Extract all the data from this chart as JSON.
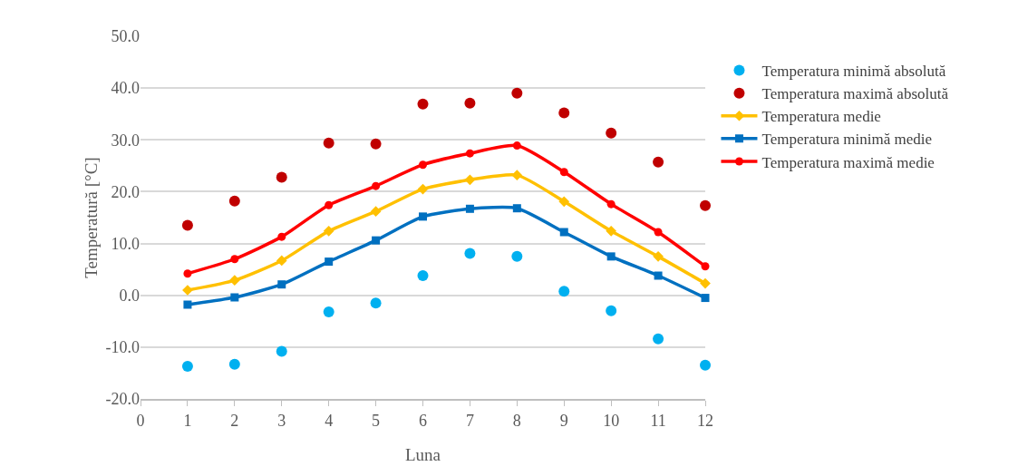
{
  "chart_data": {
    "type": "line",
    "xlabel": "Luna",
    "ylabel": "Temperatură [°C]",
    "x": [
      1,
      2,
      3,
      4,
      5,
      6,
      7,
      8,
      9,
      10,
      11,
      12
    ],
    "series": [
      {
        "name": "Temperatura minimă absolută",
        "type": "scatter",
        "marker": "circle",
        "color": "#00b0f0",
        "values": [
          -13.7,
          -13.3,
          -10.8,
          -3.2,
          -1.5,
          3.8,
          8.1,
          7.5,
          0.8,
          -3.0,
          -8.4,
          -13.5
        ]
      },
      {
        "name": "Temperatura maximă absolută",
        "type": "scatter",
        "marker": "circle",
        "color": "#c00000",
        "values": [
          13.5,
          18.2,
          22.8,
          29.4,
          29.2,
          36.9,
          37.1,
          39.0,
          35.2,
          31.3,
          25.7,
          17.3
        ]
      },
      {
        "name": "Temperatura medie",
        "marker": "diamond",
        "color": "#ffc000",
        "values": [
          1.0,
          2.9,
          6.7,
          12.4,
          16.2,
          20.5,
          22.3,
          23.2,
          18.1,
          12.4,
          7.5,
          2.3
        ]
      },
      {
        "name": "Temperatura minimă medie",
        "marker": "square",
        "color": "#0070c0",
        "values": [
          -1.8,
          -0.4,
          2.1,
          6.5,
          10.6,
          15.2,
          16.7,
          16.8,
          12.2,
          7.5,
          3.8,
          -0.5
        ]
      },
      {
        "name": "Temperatura maximă medie",
        "marker": "circle",
        "color": "#ff0000",
        "values": [
          4.2,
          7.0,
          11.3,
          17.4,
          21.1,
          25.2,
          27.4,
          28.9,
          23.8,
          17.6,
          12.2,
          5.6
        ]
      }
    ],
    "xlim": [
      0,
      12
    ],
    "xticks": [
      0,
      1,
      2,
      3,
      4,
      5,
      6,
      7,
      8,
      9,
      10,
      11,
      12
    ],
    "ylim": [
      -20,
      50
    ],
    "yticks": [
      {
        "value": -20,
        "label": "-20.0"
      },
      {
        "value": -10,
        "label": "-10.0"
      },
      {
        "value": 0,
        "label": "0.0"
      },
      {
        "value": 10,
        "label": "10.0"
      },
      {
        "value": 20,
        "label": "20.0"
      },
      {
        "value": 30,
        "label": "30.0"
      },
      {
        "value": 40,
        "label": "40.0"
      },
      {
        "value": 50,
        "label": "50.0"
      }
    ],
    "grid": "y",
    "legend": "right",
    "line_style": "solid"
  }
}
